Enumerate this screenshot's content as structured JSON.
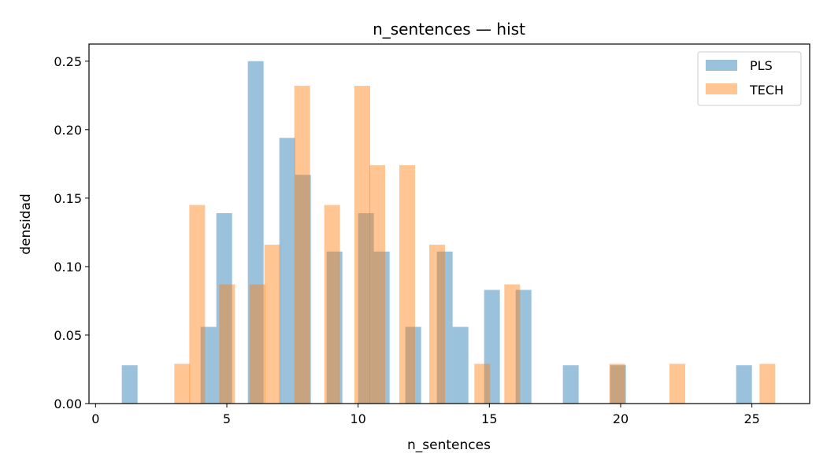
{
  "chart_data": {
    "type": "histogram",
    "title": "n_sentences — hist",
    "xlabel": "n_sentences",
    "ylabel": "densidad",
    "xlim": [
      -0.25,
      27.2
    ],
    "ylim": [
      0,
      0.2625
    ],
    "xticks": [
      0,
      5,
      10,
      15,
      20,
      25
    ],
    "xtick_labels": [
      "0",
      "5",
      "10",
      "15",
      "20",
      "25"
    ],
    "yticks": [
      0,
      0.05,
      0.1,
      0.15,
      0.2,
      0.25
    ],
    "ytick_labels": [
      "0.00",
      "0.05",
      "0.10",
      "0.15",
      "0.20",
      "0.25"
    ],
    "grid": false,
    "legend_position": "top-right",
    "alpha": 0.45,
    "series": [
      {
        "name": "PLS",
        "color": "#1f77b4",
        "bin_width": 0.6,
        "bins": [
          {
            "x0": 1.0,
            "value": 0.028
          },
          {
            "x0": 4.0,
            "value": 0.056
          },
          {
            "x0": 4.6,
            "value": 0.139
          },
          {
            "x0": 5.8,
            "value": 0.25
          },
          {
            "x0": 7.0,
            "value": 0.194
          },
          {
            "x0": 7.6,
            "value": 0.167
          },
          {
            "x0": 8.8,
            "value": 0.111
          },
          {
            "x0": 10.0,
            "value": 0.139
          },
          {
            "x0": 10.6,
            "value": 0.111
          },
          {
            "x0": 11.8,
            "value": 0.056
          },
          {
            "x0": 13.0,
            "value": 0.111
          },
          {
            "x0": 13.6,
            "value": 0.056
          },
          {
            "x0": 14.8,
            "value": 0.083
          },
          {
            "x0": 16.0,
            "value": 0.083
          },
          {
            "x0": 17.8,
            "value": 0.028
          },
          {
            "x0": 19.6,
            "value": 0.028
          },
          {
            "x0": 24.4,
            "value": 0.028
          }
        ]
      },
      {
        "name": "TECH",
        "color": "#ff7f0e",
        "bin_width": 0.6,
        "bins": [
          {
            "x0": 3.0,
            "value": 0.029
          },
          {
            "x0": 3.57,
            "value": 0.145
          },
          {
            "x0": 4.71,
            "value": 0.087
          },
          {
            "x0": 5.86,
            "value": 0.087
          },
          {
            "x0": 6.43,
            "value": 0.116
          },
          {
            "x0": 7.57,
            "value": 0.232
          },
          {
            "x0": 8.71,
            "value": 0.145
          },
          {
            "x0": 9.86,
            "value": 0.232
          },
          {
            "x0": 10.43,
            "value": 0.174
          },
          {
            "x0": 11.57,
            "value": 0.174
          },
          {
            "x0": 12.71,
            "value": 0.116
          },
          {
            "x0": 14.43,
            "value": 0.029
          },
          {
            "x0": 15.57,
            "value": 0.087
          },
          {
            "x0": 19.57,
            "value": 0.029
          },
          {
            "x0": 21.86,
            "value": 0.029
          },
          {
            "x0": 25.29,
            "value": 0.029
          }
        ]
      }
    ]
  }
}
